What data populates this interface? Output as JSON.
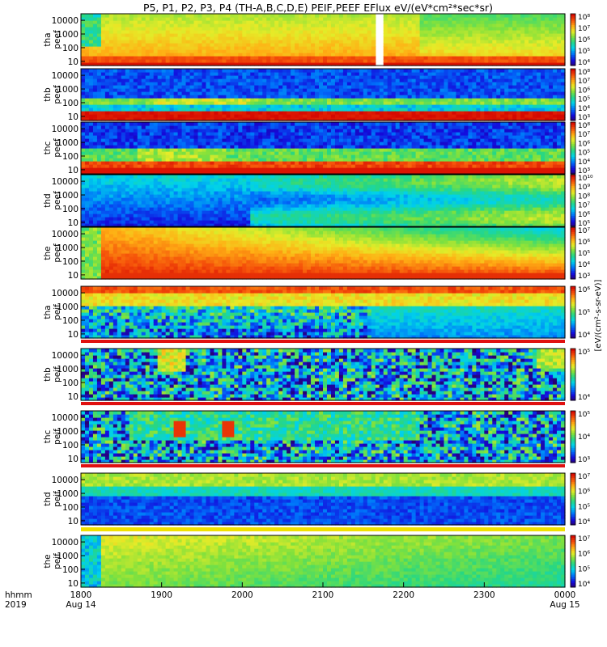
{
  "title": "P5, P1, P2, P3, P4 (TH-A,B,C,D,E) PEIF,PEEF EFlux eV/(eV*cm²*sec*sr)",
  "chart_data": {
    "type": "heatmap",
    "x_axis": {
      "label_lines": [
        "hhmm",
        "2019"
      ],
      "ticks": [
        "1800",
        "1900",
        "2000",
        "2100",
        "2200",
        "2300",
        "0000"
      ],
      "date_labels": [
        "Aug 14",
        "Aug 15"
      ],
      "range": [
        "2019-08-14 18:00",
        "2019-08-15 00:00"
      ]
    },
    "y_ticks": [
      "10",
      "100",
      "1000",
      "10000"
    ],
    "y_scale": "log",
    "colorbar_unit": "[eV/(cm²-s-sr-eV)]",
    "panels": [
      {
        "label": [
          "tha",
          "peef"
        ],
        "pattern": "tha_peef",
        "colorbar_ticks": [
          "10⁴",
          "10⁵",
          "10⁶",
          "10⁷",
          "10⁸"
        ]
      },
      {
        "label": [
          "thb",
          "peef"
        ],
        "pattern": "thb_peef",
        "colorbar_ticks": [
          "10³",
          "10⁴",
          "10⁵",
          "10⁶",
          "10⁷",
          "10⁸"
        ]
      },
      {
        "label": [
          "thc",
          "peef"
        ],
        "pattern": "thc_peef",
        "colorbar_ticks": [
          "10³",
          "10⁴",
          "10⁵",
          "10⁶",
          "10⁷",
          "10⁸"
        ]
      },
      {
        "label": [
          "thd",
          "peef"
        ],
        "pattern": "thd_peef",
        "colorbar_ticks": [
          "10⁵",
          "10⁶",
          "10⁷",
          "10⁸",
          "10⁹",
          "10¹⁰"
        ]
      },
      {
        "label": [
          "the",
          "peef"
        ],
        "pattern": "the_peef",
        "colorbar_ticks": [
          "10³",
          "10⁴",
          "10⁵",
          "10⁶",
          "10⁷"
        ]
      },
      {
        "label": [
          "tha",
          "peif"
        ],
        "pattern": "tha_peif",
        "colorbar_ticks": [
          "10⁴",
          "10⁵",
          "10⁶"
        ]
      },
      {
        "label": [
          "thb",
          "peif"
        ],
        "pattern": "thb_peif",
        "colorbar_ticks": [
          "10⁴",
          "10⁵"
        ]
      },
      {
        "label": [
          "thc",
          "peif"
        ],
        "pattern": "thc_peif",
        "colorbar_ticks": [
          "10³",
          "10⁴",
          "10⁵"
        ]
      },
      {
        "label": [
          "thd",
          "peif"
        ],
        "pattern": "thd_peif",
        "colorbar_ticks": [
          "10⁴",
          "10⁵",
          "10⁶",
          "10⁷"
        ]
      },
      {
        "label": [
          "the",
          "peif"
        ],
        "pattern": "the_peif",
        "colorbar_ticks": [
          "10⁴",
          "10⁵",
          "10⁶",
          "10⁷"
        ]
      }
    ]
  }
}
